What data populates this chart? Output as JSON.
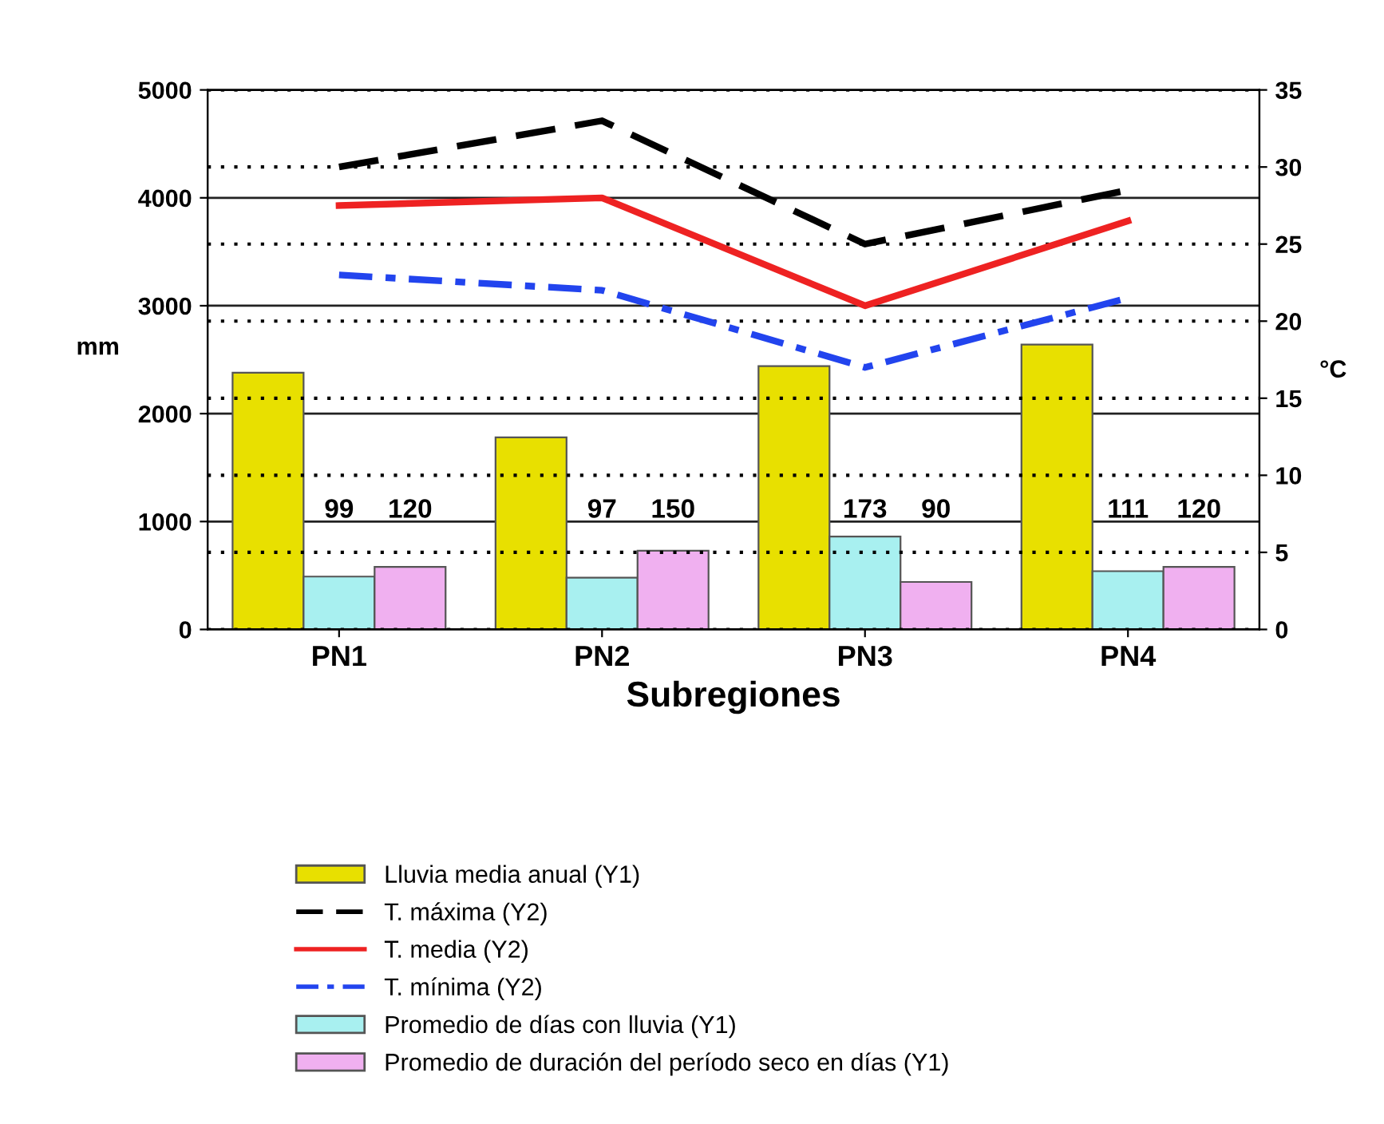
{
  "chart_data": {
    "type": "bar",
    "xlabel": "Subregiones",
    "ylabel": "mm",
    "y2label": "°C",
    "categories": [
      "PN1",
      "PN2",
      "PN3",
      "PN4"
    ],
    "series": [
      {
        "name": "Lluvia media anual (Y1)",
        "type": "bar",
        "color": "#e8e000",
        "values": [
          2380,
          1780,
          2440,
          2640
        ]
      },
      {
        "name": "T. máxima (Y2)",
        "type": "line",
        "axis": "y2",
        "color": "#000000",
        "line_style": "dashed",
        "values": [
          30,
          33,
          25,
          28.5
        ]
      },
      {
        "name": "T. media (Y2)",
        "type": "line",
        "axis": "y2",
        "color": "#ee2222",
        "line_style": "solid",
        "values": [
          27.5,
          28,
          21,
          26.5
        ]
      },
      {
        "name": "T. mínima (Y2)",
        "type": "line",
        "axis": "y2",
        "color": "#2244ee",
        "line_style": "dashdot",
        "values": [
          23,
          22,
          17,
          21.5
        ]
      },
      {
        "name": "Promedio de días con lluvia (Y1)",
        "type": "bar",
        "color": "#a8f0f0",
        "values": [
          490,
          480,
          860,
          540
        ]
      },
      {
        "name": "Promedio de duración del período seco en días (Y1)",
        "type": "bar",
        "color": "#f0b0f0",
        "values": [
          580,
          730,
          440,
          580
        ]
      }
    ],
    "annotations": [
      "99",
      "120",
      "97",
      "150",
      "173",
      "90",
      "111",
      "120"
    ],
    "ylim": [
      0,
      5000
    ],
    "yticks": [
      0,
      1000,
      2000,
      3000,
      4000,
      5000
    ],
    "y2lim": [
      0,
      35
    ],
    "y2ticks": [
      0,
      5,
      10,
      15,
      20,
      25,
      30,
      35
    ],
    "grid": "y",
    "legend": "bottom"
  }
}
